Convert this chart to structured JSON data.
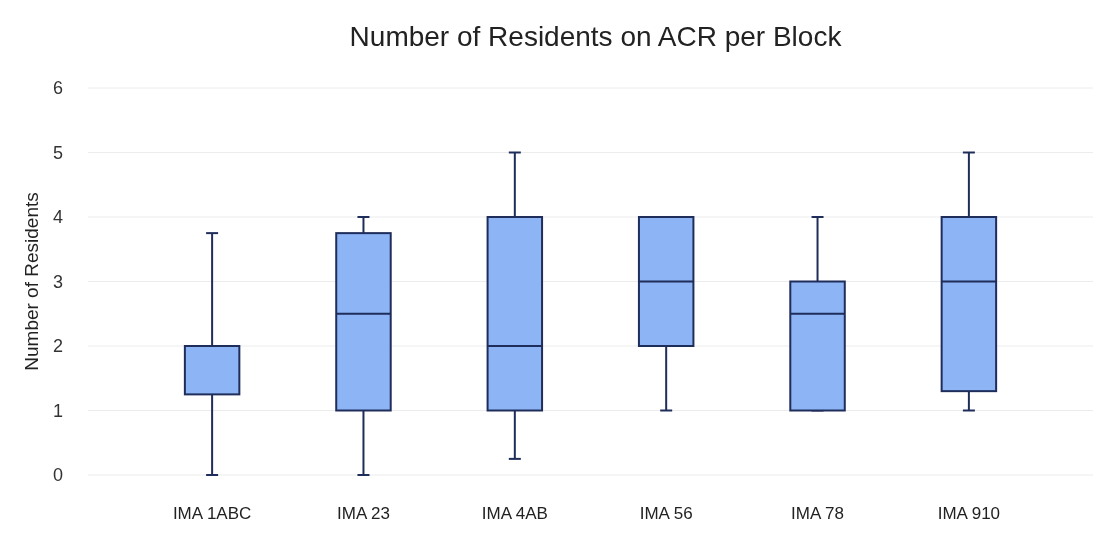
{
  "chart_data": {
    "type": "box",
    "title": "Number of Residents on ACR per Block",
    "ylabel": "Number of Residents",
    "categories": [
      "IMA 1ABC",
      "IMA 23",
      "IMA 4AB",
      "IMA 56",
      "IMA 78",
      "IMA 910"
    ],
    "boxes": [
      {
        "low": 0,
        "q1": 1.25,
        "median": 2,
        "q3": 2,
        "high": 3.75
      },
      {
        "low": 0,
        "q1": 1,
        "median": 2.5,
        "q3": 3.75,
        "high": 4
      },
      {
        "low": 0.25,
        "q1": 1,
        "median": 2,
        "q3": 4,
        "high": 5
      },
      {
        "low": 1,
        "q1": 2,
        "median": 3,
        "q3": 4,
        "high": 4
      },
      {
        "low": 1,
        "q1": 1,
        "median": 2.5,
        "q3": 3,
        "high": 4
      },
      {
        "low": 1,
        "q1": 1.3,
        "median": 3,
        "q3": 4,
        "high": 5
      }
    ],
    "color": "#8db4f5",
    "ylim": [
      0,
      6
    ],
    "yticks": [
      0,
      1,
      2,
      3,
      4,
      5,
      6
    ],
    "grid": "y"
  }
}
